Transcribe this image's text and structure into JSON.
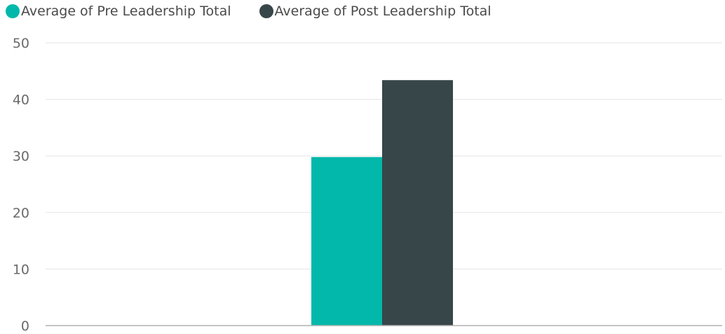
{
  "chart_data": {
    "type": "bar",
    "categories": [
      ""
    ],
    "series": [
      {
        "name": "Average of Pre Leadership Total",
        "values": [
          29.8
        ],
        "color": "#01B8AA"
      },
      {
        "name": "Average of Post Leadership Total",
        "values": [
          43.4
        ],
        "color": "#374649"
      }
    ],
    "ylim": [
      0,
      50
    ],
    "yticks": [
      "0",
      "10",
      "20",
      "30",
      "40",
      "50"
    ],
    "grid": true,
    "legend_position": "top-left",
    "title": "",
    "xlabel": "",
    "ylabel": ""
  }
}
